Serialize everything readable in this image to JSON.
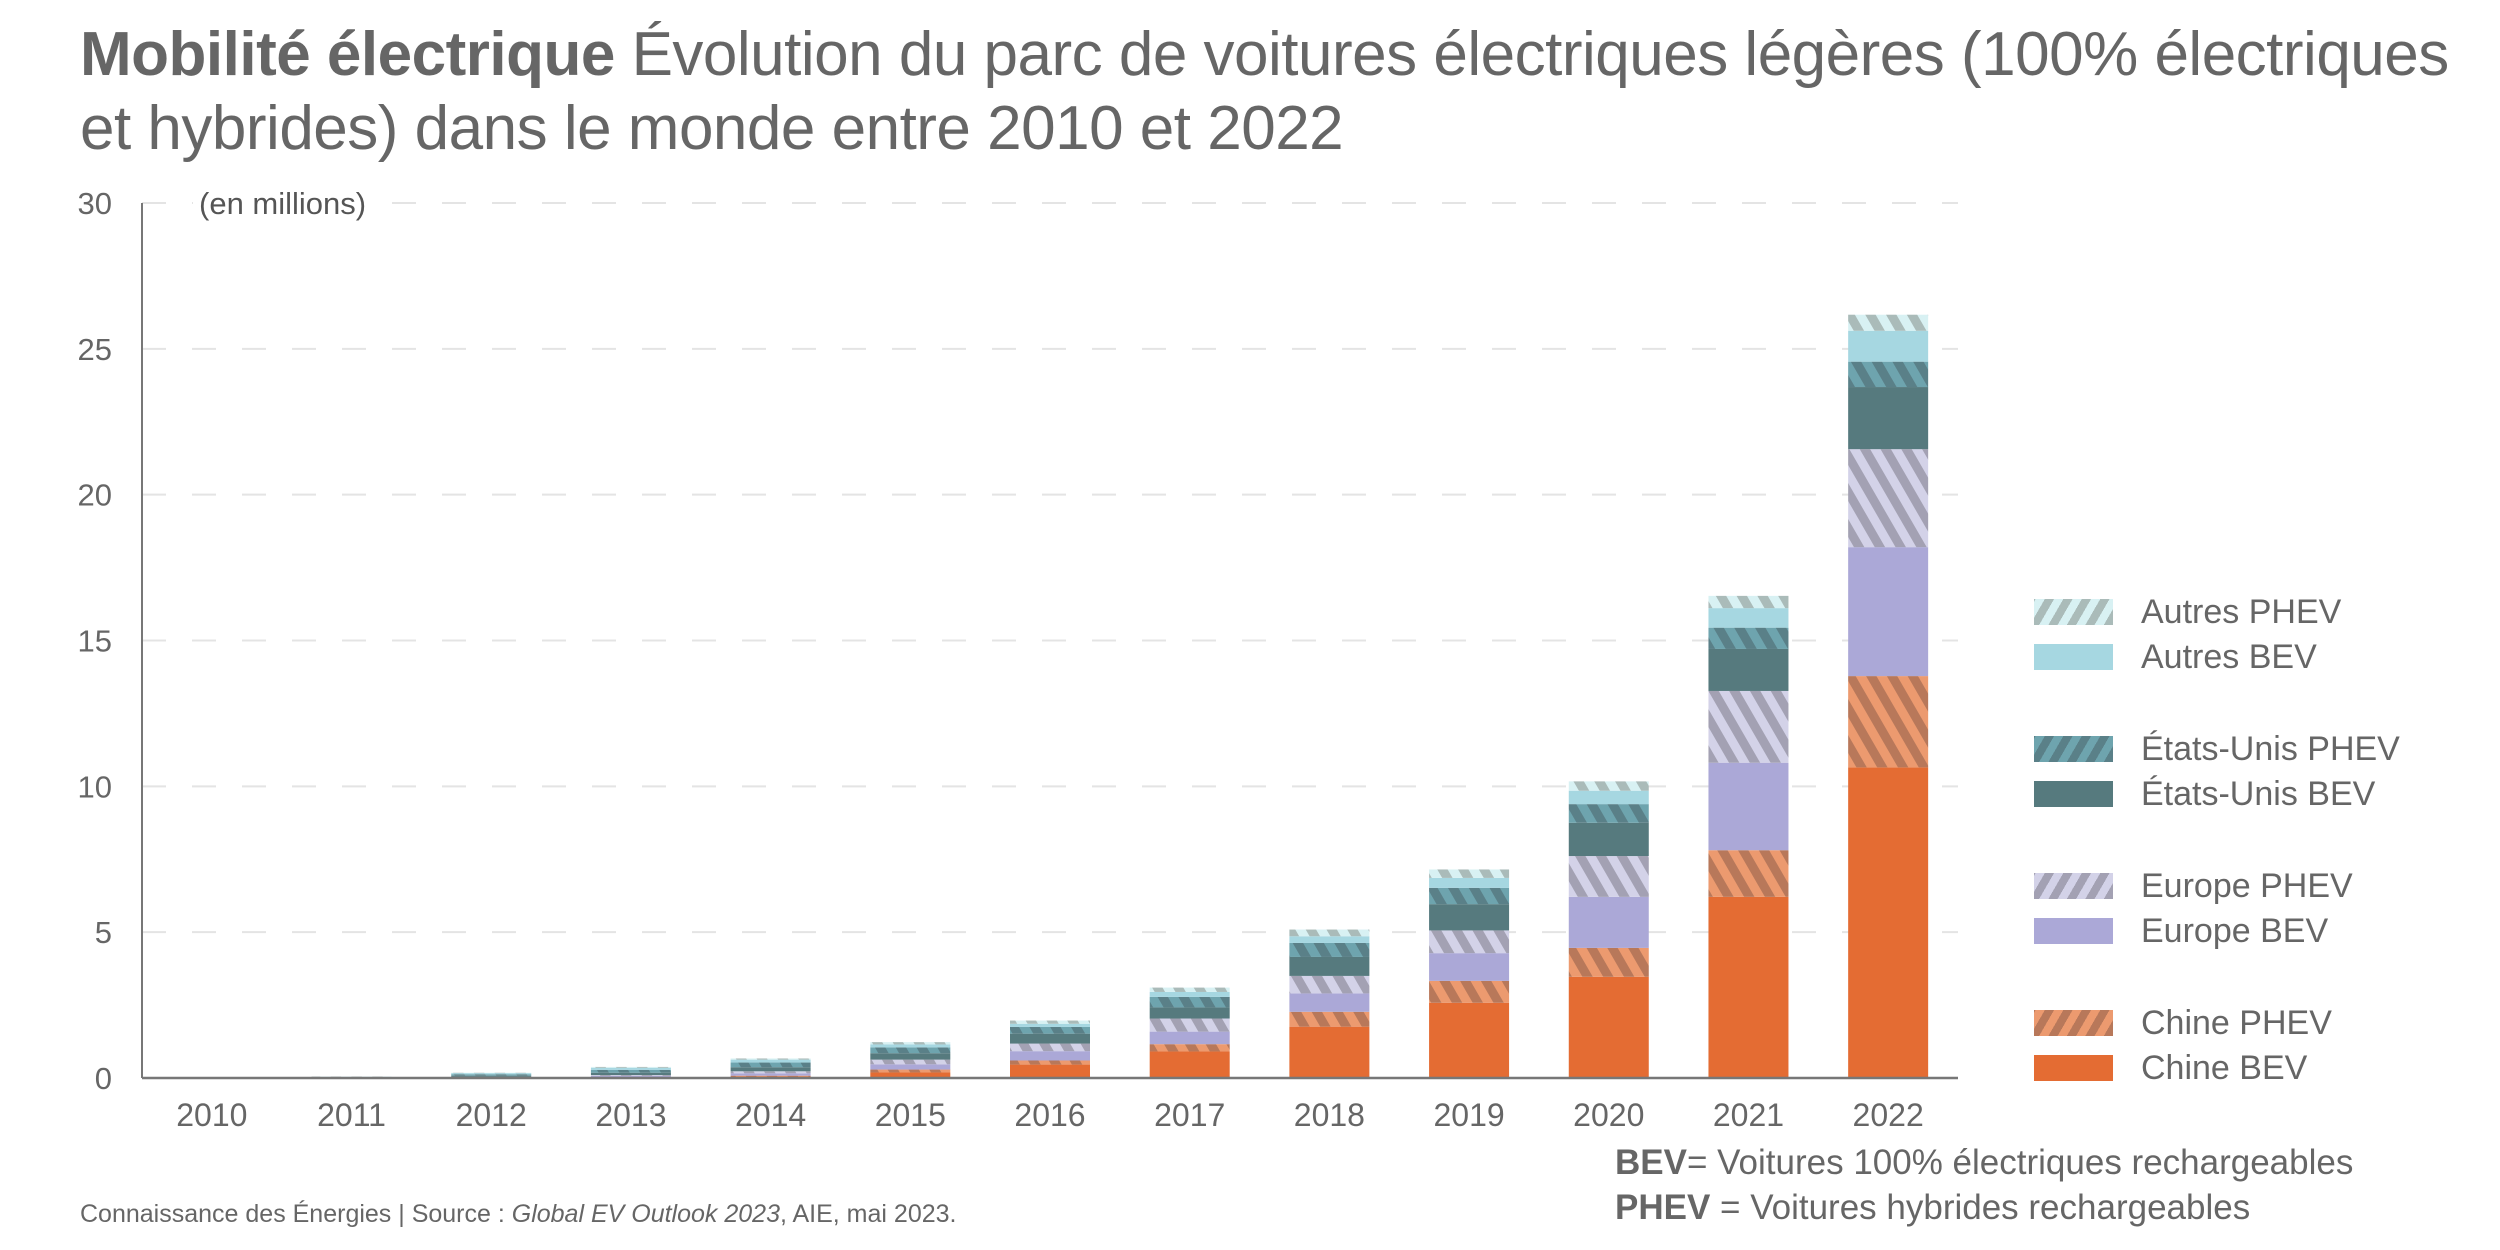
{
  "header": {
    "title_bold": "Mobilité électrique",
    "title_rest": "Évolution du parc de voitures électriques légères (100% électriques et hybrides) dans le monde entre 2010 et 2022"
  },
  "notes": {
    "bev_term": "BEV",
    "bev_def": "= Voitures 100% électriques rechargeables",
    "phev_term": "PHEV",
    "phev_def": " = Voitures hybrides rechargeables"
  },
  "footer": {
    "prefix": "Connaissance des Énergies | Source : ",
    "source_italic": "Global EV Outlook 2023",
    "suffix": ", AIE, mai 2023."
  },
  "chart_data": {
    "type": "bar",
    "stacked": true,
    "title": "Mobilité électrique Évolution du parc de voitures électriques légères (100% électriques et hybrides) dans le monde entre 2010 et 2022",
    "xlabel": "",
    "ylabel": "(en millions)",
    "ylim": [
      0,
      30
    ],
    "yticks": [
      0,
      5,
      10,
      15,
      20,
      25,
      30
    ],
    "grid": true,
    "legend_position": "right",
    "categories": [
      "2010",
      "2011",
      "2012",
      "2013",
      "2014",
      "2015",
      "2016",
      "2017",
      "2018",
      "2019",
      "2020",
      "2021",
      "2022"
    ],
    "series": [
      {
        "name": "Chine BEV",
        "pattern": "solid",
        "color": "#E46C33",
        "color2": "#E46C33",
        "values": [
          0.0,
          0.0,
          0.01,
          0.02,
          0.05,
          0.19,
          0.46,
          0.91,
          1.76,
          2.58,
          3.47,
          6.21,
          10.65
        ]
      },
      {
        "name": "Chine PHEV",
        "pattern": "hatch",
        "color": "#EC9A6F",
        "color2": "#B8785A",
        "values": [
          0.0,
          0.0,
          0.0,
          0.01,
          0.03,
          0.1,
          0.14,
          0.25,
          0.51,
          0.75,
          0.99,
          1.6,
          3.13
        ]
      },
      {
        "name": "Europe BEV",
        "pattern": "solid",
        "color": "#ABA8D7",
        "color2": "#ABA8D7",
        "values": [
          0.0,
          0.01,
          0.02,
          0.04,
          0.08,
          0.18,
          0.32,
          0.43,
          0.63,
          0.95,
          1.75,
          3.0,
          4.42
        ]
      },
      {
        "name": "Europe PHEV",
        "pattern": "hatch",
        "color": "#D3D2E8",
        "color2": "#A3A1B3",
        "values": [
          0.0,
          0.0,
          0.01,
          0.03,
          0.07,
          0.16,
          0.26,
          0.45,
          0.6,
          0.78,
          1.4,
          2.46,
          3.36
        ]
      },
      {
        "name": "États-Unis BEV",
        "pattern": "solid",
        "color": "#567A7E",
        "color2": "#567A7E",
        "values": [
          0.0,
          0.01,
          0.04,
          0.08,
          0.14,
          0.22,
          0.34,
          0.38,
          0.65,
          0.9,
          1.14,
          1.44,
          2.13
        ]
      },
      {
        "name": "États-Unis PHEV",
        "pattern": "hatch",
        "color": "#6EA4AE",
        "color2": "#5A8088",
        "values": [
          0.0,
          0.01,
          0.05,
          0.1,
          0.16,
          0.2,
          0.23,
          0.36,
          0.48,
          0.56,
          0.64,
          0.73,
          0.87
        ]
      },
      {
        "name": "Autres BEV",
        "pattern": "solid",
        "color": "#A6D7E1",
        "color2": "#A6D7E1",
        "values": [
          0.0,
          0.01,
          0.04,
          0.07,
          0.1,
          0.1,
          0.11,
          0.17,
          0.23,
          0.34,
          0.46,
          0.67,
          1.06
        ]
      },
      {
        "name": "Autres PHEV",
        "pattern": "hatch",
        "color": "#D8F1F3",
        "color2": "#AABBB9",
        "values": [
          0.0,
          0.01,
          0.01,
          0.03,
          0.04,
          0.08,
          0.11,
          0.15,
          0.23,
          0.29,
          0.32,
          0.42,
          0.55
        ]
      }
    ],
    "legend": [
      {
        "label": "Autres PHEV",
        "series": 7
      },
      {
        "label": "Autres BEV",
        "series": 6
      },
      {
        "label": "États-Unis PHEV",
        "series": 5
      },
      {
        "label": "États-Unis BEV",
        "series": 4
      },
      {
        "label": "Europe PHEV",
        "series": 3
      },
      {
        "label": "Europe BEV",
        "series": 2
      },
      {
        "label": "Chine PHEV",
        "series": 1
      },
      {
        "label": "Chine BEV",
        "series": 0
      }
    ]
  }
}
